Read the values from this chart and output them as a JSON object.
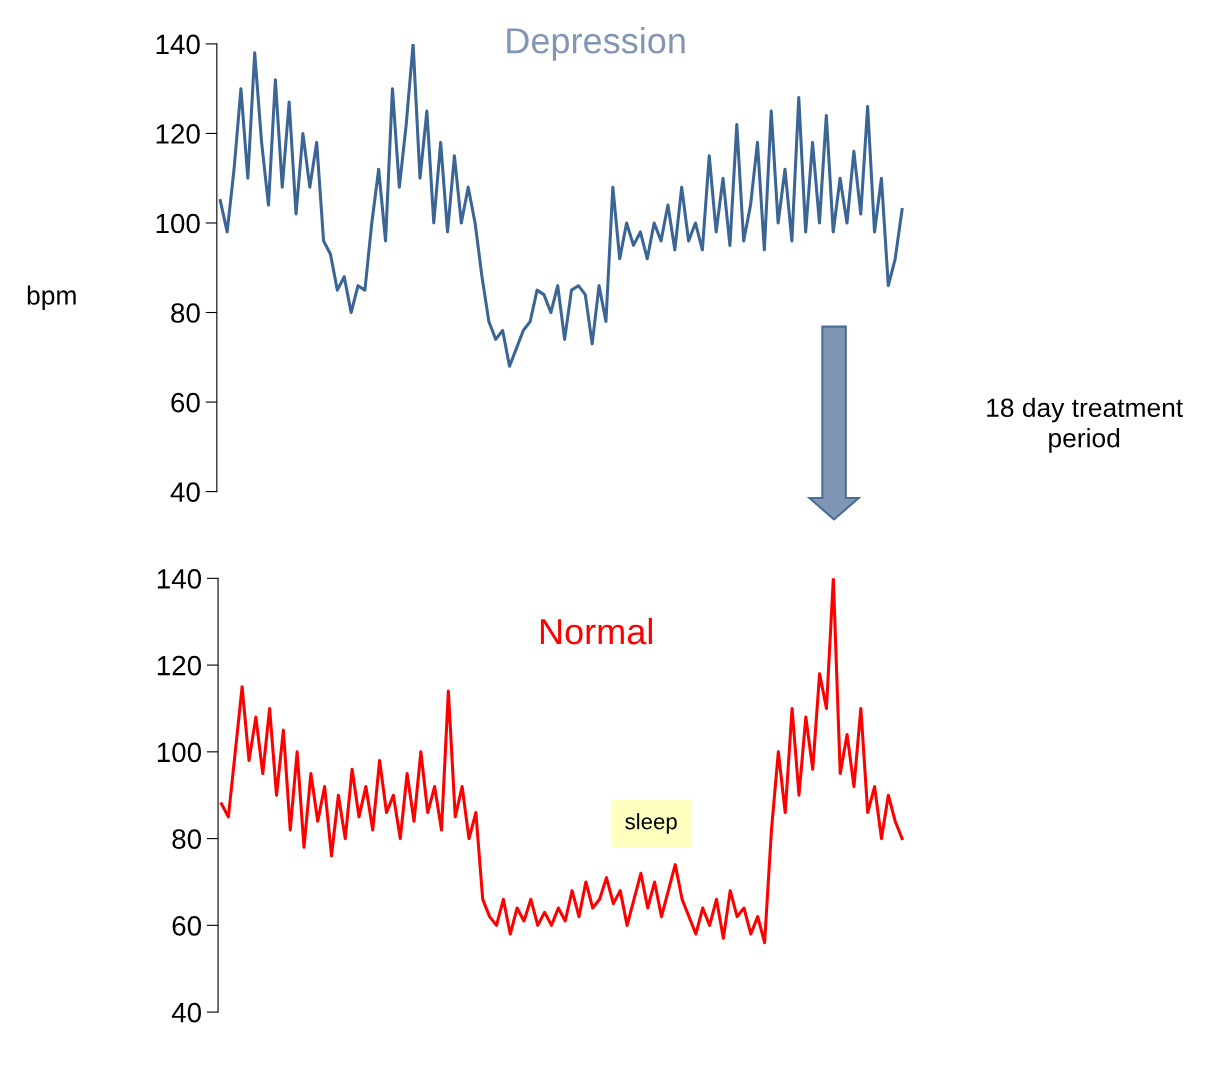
{
  "chart_data": [
    {
      "type": "line",
      "title": "Depression",
      "ylabel": "bpm",
      "categories": [
        null,
        null,
        null,
        null,
        null,
        null,
        null,
        null,
        null,
        null,
        null,
        null,
        null,
        null,
        null,
        null,
        null,
        null,
        null,
        null,
        null,
        null,
        null,
        null,
        null,
        null,
        null,
        null,
        null,
        null,
        null,
        null,
        null,
        null,
        null,
        null,
        null,
        null,
        null,
        null,
        null,
        null,
        null,
        null,
        null,
        null,
        null,
        null,
        null,
        null,
        null,
        null,
        null,
        null,
        null,
        null,
        null,
        null,
        null,
        null,
        null,
        null,
        null,
        null,
        null,
        null,
        null,
        null,
        null,
        null,
        null,
        null,
        null,
        null,
        null,
        null,
        null,
        null,
        null,
        null,
        null,
        null,
        null,
        null,
        null,
        null,
        null,
        null,
        null,
        null,
        null,
        null,
        null,
        null,
        null,
        null,
        null,
        null,
        null,
        null
      ],
      "series": [
        {
          "color": "#3a6595",
          "values": [
            105,
            98,
            112,
            130,
            110,
            138,
            118,
            104,
            132,
            108,
            127,
            102,
            120,
            108,
            118,
            96,
            93,
            85,
            88,
            80,
            86,
            85,
            100,
            112,
            96,
            130,
            108,
            122,
            140,
            110,
            125,
            100,
            118,
            98,
            115,
            100,
            108,
            100,
            88,
            78,
            74,
            76,
            68,
            72,
            76,
            78,
            85,
            84,
            80,
            86,
            74,
            85,
            86,
            84,
            73,
            86,
            78,
            108,
            92,
            100,
            95,
            98,
            92,
            100,
            96,
            104,
            94,
            108,
            96,
            100,
            94,
            115,
            98,
            110,
            95,
            122,
            96,
            104,
            118,
            94,
            125,
            100,
            112,
            96,
            128,
            98,
            118,
            100,
            124,
            98,
            110,
            100,
            116,
            102,
            126,
            98,
            110,
            86,
            92,
            103
          ]
        }
      ],
      "ylim": [
        40,
        140
      ],
      "yticks": [
        40,
        60,
        80,
        100,
        120,
        140
      ],
      "grid": false,
      "legend": false,
      "tick_labels": "y",
      "annotations": [
        "18 day treatment\nperiod"
      ]
    },
    {
      "type": "line",
      "title": "Normal",
      "categories": [
        null,
        null,
        null,
        null,
        null,
        null,
        null,
        null,
        null,
        null,
        null,
        null,
        null,
        null,
        null,
        null,
        null,
        null,
        null,
        null,
        null,
        null,
        null,
        null,
        null,
        null,
        null,
        null,
        null,
        null,
        null,
        null,
        null,
        null,
        null,
        null,
        null,
        null,
        null,
        null,
        null,
        null,
        null,
        null,
        null,
        null,
        null,
        null,
        null,
        null,
        null,
        null,
        null,
        null,
        null,
        null,
        null,
        null,
        null,
        null,
        null,
        null,
        null,
        null,
        null,
        null,
        null,
        null,
        null,
        null,
        null,
        null,
        null,
        null,
        null,
        null,
        null,
        null,
        null,
        null,
        null,
        null,
        null,
        null,
        null,
        null,
        null,
        null,
        null,
        null,
        null,
        null,
        null,
        null,
        null,
        null,
        null,
        null,
        null,
        null
      ],
      "series": [
        {
          "color": "#ff0000",
          "values": [
            88,
            85,
            100,
            115,
            98,
            108,
            95,
            110,
            90,
            105,
            82,
            100,
            78,
            95,
            84,
            92,
            76,
            90,
            80,
            96,
            85,
            92,
            82,
            98,
            86,
            90,
            80,
            95,
            84,
            100,
            86,
            92,
            82,
            114,
            85,
            92,
            80,
            86,
            66,
            62,
            60,
            66,
            58,
            64,
            61,
            66,
            60,
            63,
            60,
            64,
            61,
            68,
            62,
            70,
            64,
            66,
            71,
            65,
            68,
            60,
            66,
            72,
            64,
            70,
            62,
            68,
            74,
            66,
            62,
            58,
            64,
            60,
            66,
            57,
            68,
            62,
            64,
            58,
            62,
            56,
            82,
            100,
            86,
            110,
            90,
            108,
            96,
            118,
            110,
            140,
            95,
            104,
            92,
            110,
            86,
            92,
            80,
            90,
            84,
            80
          ]
        }
      ],
      "ylim": [
        40,
        140
      ],
      "yticks": [
        40,
        60,
        80,
        100,
        120,
        140
      ],
      "grid": false,
      "legend": false,
      "tick_labels": "y",
      "annotations": [
        "sleep"
      ]
    }
  ]
}
